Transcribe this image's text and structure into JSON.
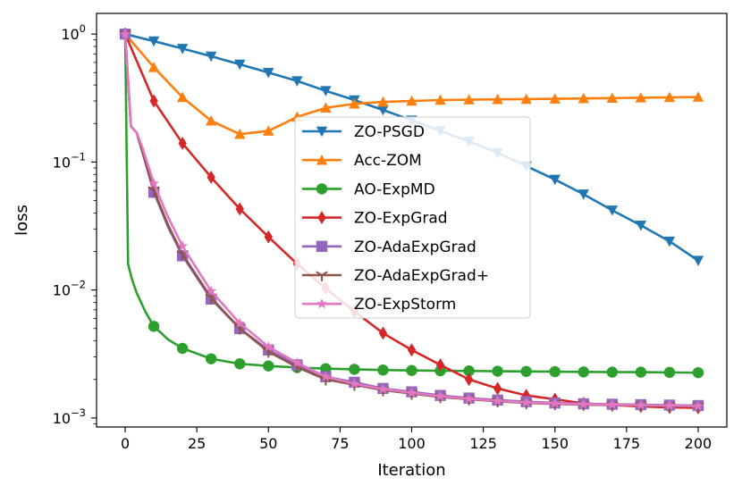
{
  "chart_data": {
    "type": "line",
    "title": "",
    "xlabel": "Iteration",
    "ylabel": "loss",
    "xlim": [
      -10,
      210
    ],
    "ylim": [
      0.00085,
      1.45
    ],
    "yscale": "log",
    "grid": false,
    "legend_position": "center",
    "x_ticks": [
      0,
      25,
      50,
      75,
      100,
      125,
      150,
      175,
      200
    ],
    "x_tick_labels": [
      "0",
      "25",
      "50",
      "75",
      "100",
      "125",
      "150",
      "175",
      "200"
    ],
    "y_ticks": [
      0.001,
      0.01,
      0.1,
      1
    ],
    "y_tick_labels": [
      {
        "base": "10",
        "exp": "−3"
      },
      {
        "base": "10",
        "exp": "−2"
      },
      {
        "base": "10",
        "exp": "−1"
      },
      {
        "base": "10",
        "exp": "0"
      }
    ],
    "series": [
      {
        "name": "ZO-PSGD",
        "color": "#1f77b4",
        "marker": "triangle-down",
        "x": [
          0,
          10,
          20,
          30,
          40,
          50,
          60,
          70,
          80,
          90,
          100,
          110,
          120,
          130,
          140,
          150,
          160,
          170,
          180,
          190,
          200
        ],
        "y": [
          1.0,
          0.88,
          0.77,
          0.67,
          0.58,
          0.5,
          0.43,
          0.36,
          0.305,
          0.255,
          0.212,
          0.175,
          0.145,
          0.118,
          0.093,
          0.073,
          0.056,
          0.042,
          0.032,
          0.024,
          0.017
        ]
      },
      {
        "name": "Acc-ZOM",
        "color": "#ff7f0e",
        "marker": "triangle-up",
        "x": [
          0,
          10,
          20,
          30,
          40,
          50,
          60,
          70,
          80,
          90,
          100,
          110,
          120,
          130,
          140,
          150,
          160,
          170,
          180,
          190,
          200
        ],
        "y": [
          1.0,
          0.55,
          0.32,
          0.21,
          0.165,
          0.175,
          0.225,
          0.265,
          0.285,
          0.295,
          0.3,
          0.305,
          0.307,
          0.309,
          0.31,
          0.312,
          0.314,
          0.316,
          0.318,
          0.32,
          0.322
        ]
      },
      {
        "name": "AO-ExpMD",
        "color": "#2ca02c",
        "marker": "circle",
        "x": [
          0,
          1,
          2,
          3,
          4,
          5,
          7,
          10,
          15,
          20,
          30,
          40,
          50,
          60,
          70,
          80,
          90,
          100,
          110,
          120,
          130,
          140,
          150,
          160,
          170,
          180,
          190,
          200
        ],
        "y": [
          1.0,
          0.016,
          0.013,
          0.011,
          0.0095,
          0.0085,
          0.0068,
          0.0052,
          0.0041,
          0.0035,
          0.0029,
          0.00265,
          0.00255,
          0.00248,
          0.00243,
          0.0024,
          0.00237,
          0.00235,
          0.00234,
          0.00233,
          0.00232,
          0.00231,
          0.0023,
          0.00229,
          0.00228,
          0.00228,
          0.00227,
          0.00226
        ]
      },
      {
        "name": "ZO-ExpGrad",
        "color": "#d62728",
        "marker": "diamond",
        "x": [
          0,
          10,
          20,
          30,
          40,
          50,
          60,
          70,
          80,
          90,
          100,
          110,
          120,
          130,
          140,
          150,
          160,
          170,
          180,
          190,
          200
        ],
        "y": [
          1.0,
          0.3,
          0.14,
          0.076,
          0.043,
          0.026,
          0.016,
          0.0103,
          0.0068,
          0.0046,
          0.0034,
          0.0026,
          0.002,
          0.0017,
          0.0015,
          0.0014,
          0.0013,
          0.00126,
          0.00123,
          0.00121,
          0.0012
        ]
      },
      {
        "name": "ZO-AdaExpGrad",
        "color": "#9467bd",
        "marker": "square",
        "x": [
          0,
          2,
          4,
          6,
          10,
          15,
          20,
          30,
          40,
          50,
          60,
          70,
          80,
          90,
          100,
          110,
          120,
          130,
          140,
          150,
          160,
          170,
          180,
          190,
          200
        ],
        "y": [
          1.0,
          0.19,
          0.17,
          0.12,
          0.058,
          0.031,
          0.0185,
          0.0085,
          0.005,
          0.0034,
          0.0026,
          0.0021,
          0.0019,
          0.0017,
          0.0016,
          0.0015,
          0.00143,
          0.00138,
          0.00134,
          0.00131,
          0.00129,
          0.00128,
          0.00127,
          0.00126,
          0.00125
        ]
      },
      {
        "name": "ZO-AdaExpGrad+",
        "color": "#8c564b",
        "marker": "tri-down",
        "x": [
          0,
          2,
          4,
          6,
          10,
          15,
          20,
          30,
          40,
          50,
          60,
          70,
          80,
          90,
          100,
          110,
          120,
          130,
          140,
          150,
          160,
          170,
          180,
          190,
          200
        ],
        "y": [
          1.0,
          0.19,
          0.17,
          0.12,
          0.06,
          0.032,
          0.019,
          0.0087,
          0.005,
          0.0033,
          0.0025,
          0.002,
          0.00182,
          0.00165,
          0.00155,
          0.00146,
          0.0014,
          0.00135,
          0.00131,
          0.00129,
          0.00127,
          0.00126,
          0.00125,
          0.00124,
          0.00123
        ]
      },
      {
        "name": "ZO-ExpStorm",
        "color": "#e377c2",
        "marker": "star",
        "x": [
          0,
          2,
          4,
          6,
          10,
          15,
          20,
          30,
          40,
          50,
          60,
          70,
          80,
          90,
          100,
          110,
          120,
          130,
          140,
          150,
          160,
          170,
          180,
          190,
          200
        ],
        "y": [
          1.0,
          0.19,
          0.17,
          0.13,
          0.068,
          0.037,
          0.022,
          0.0098,
          0.0055,
          0.0036,
          0.0027,
          0.0021,
          0.00185,
          0.00168,
          0.00157,
          0.00148,
          0.00141,
          0.00136,
          0.00132,
          0.0013,
          0.00128,
          0.00127,
          0.00126,
          0.00125,
          0.00124
        ]
      }
    ]
  }
}
